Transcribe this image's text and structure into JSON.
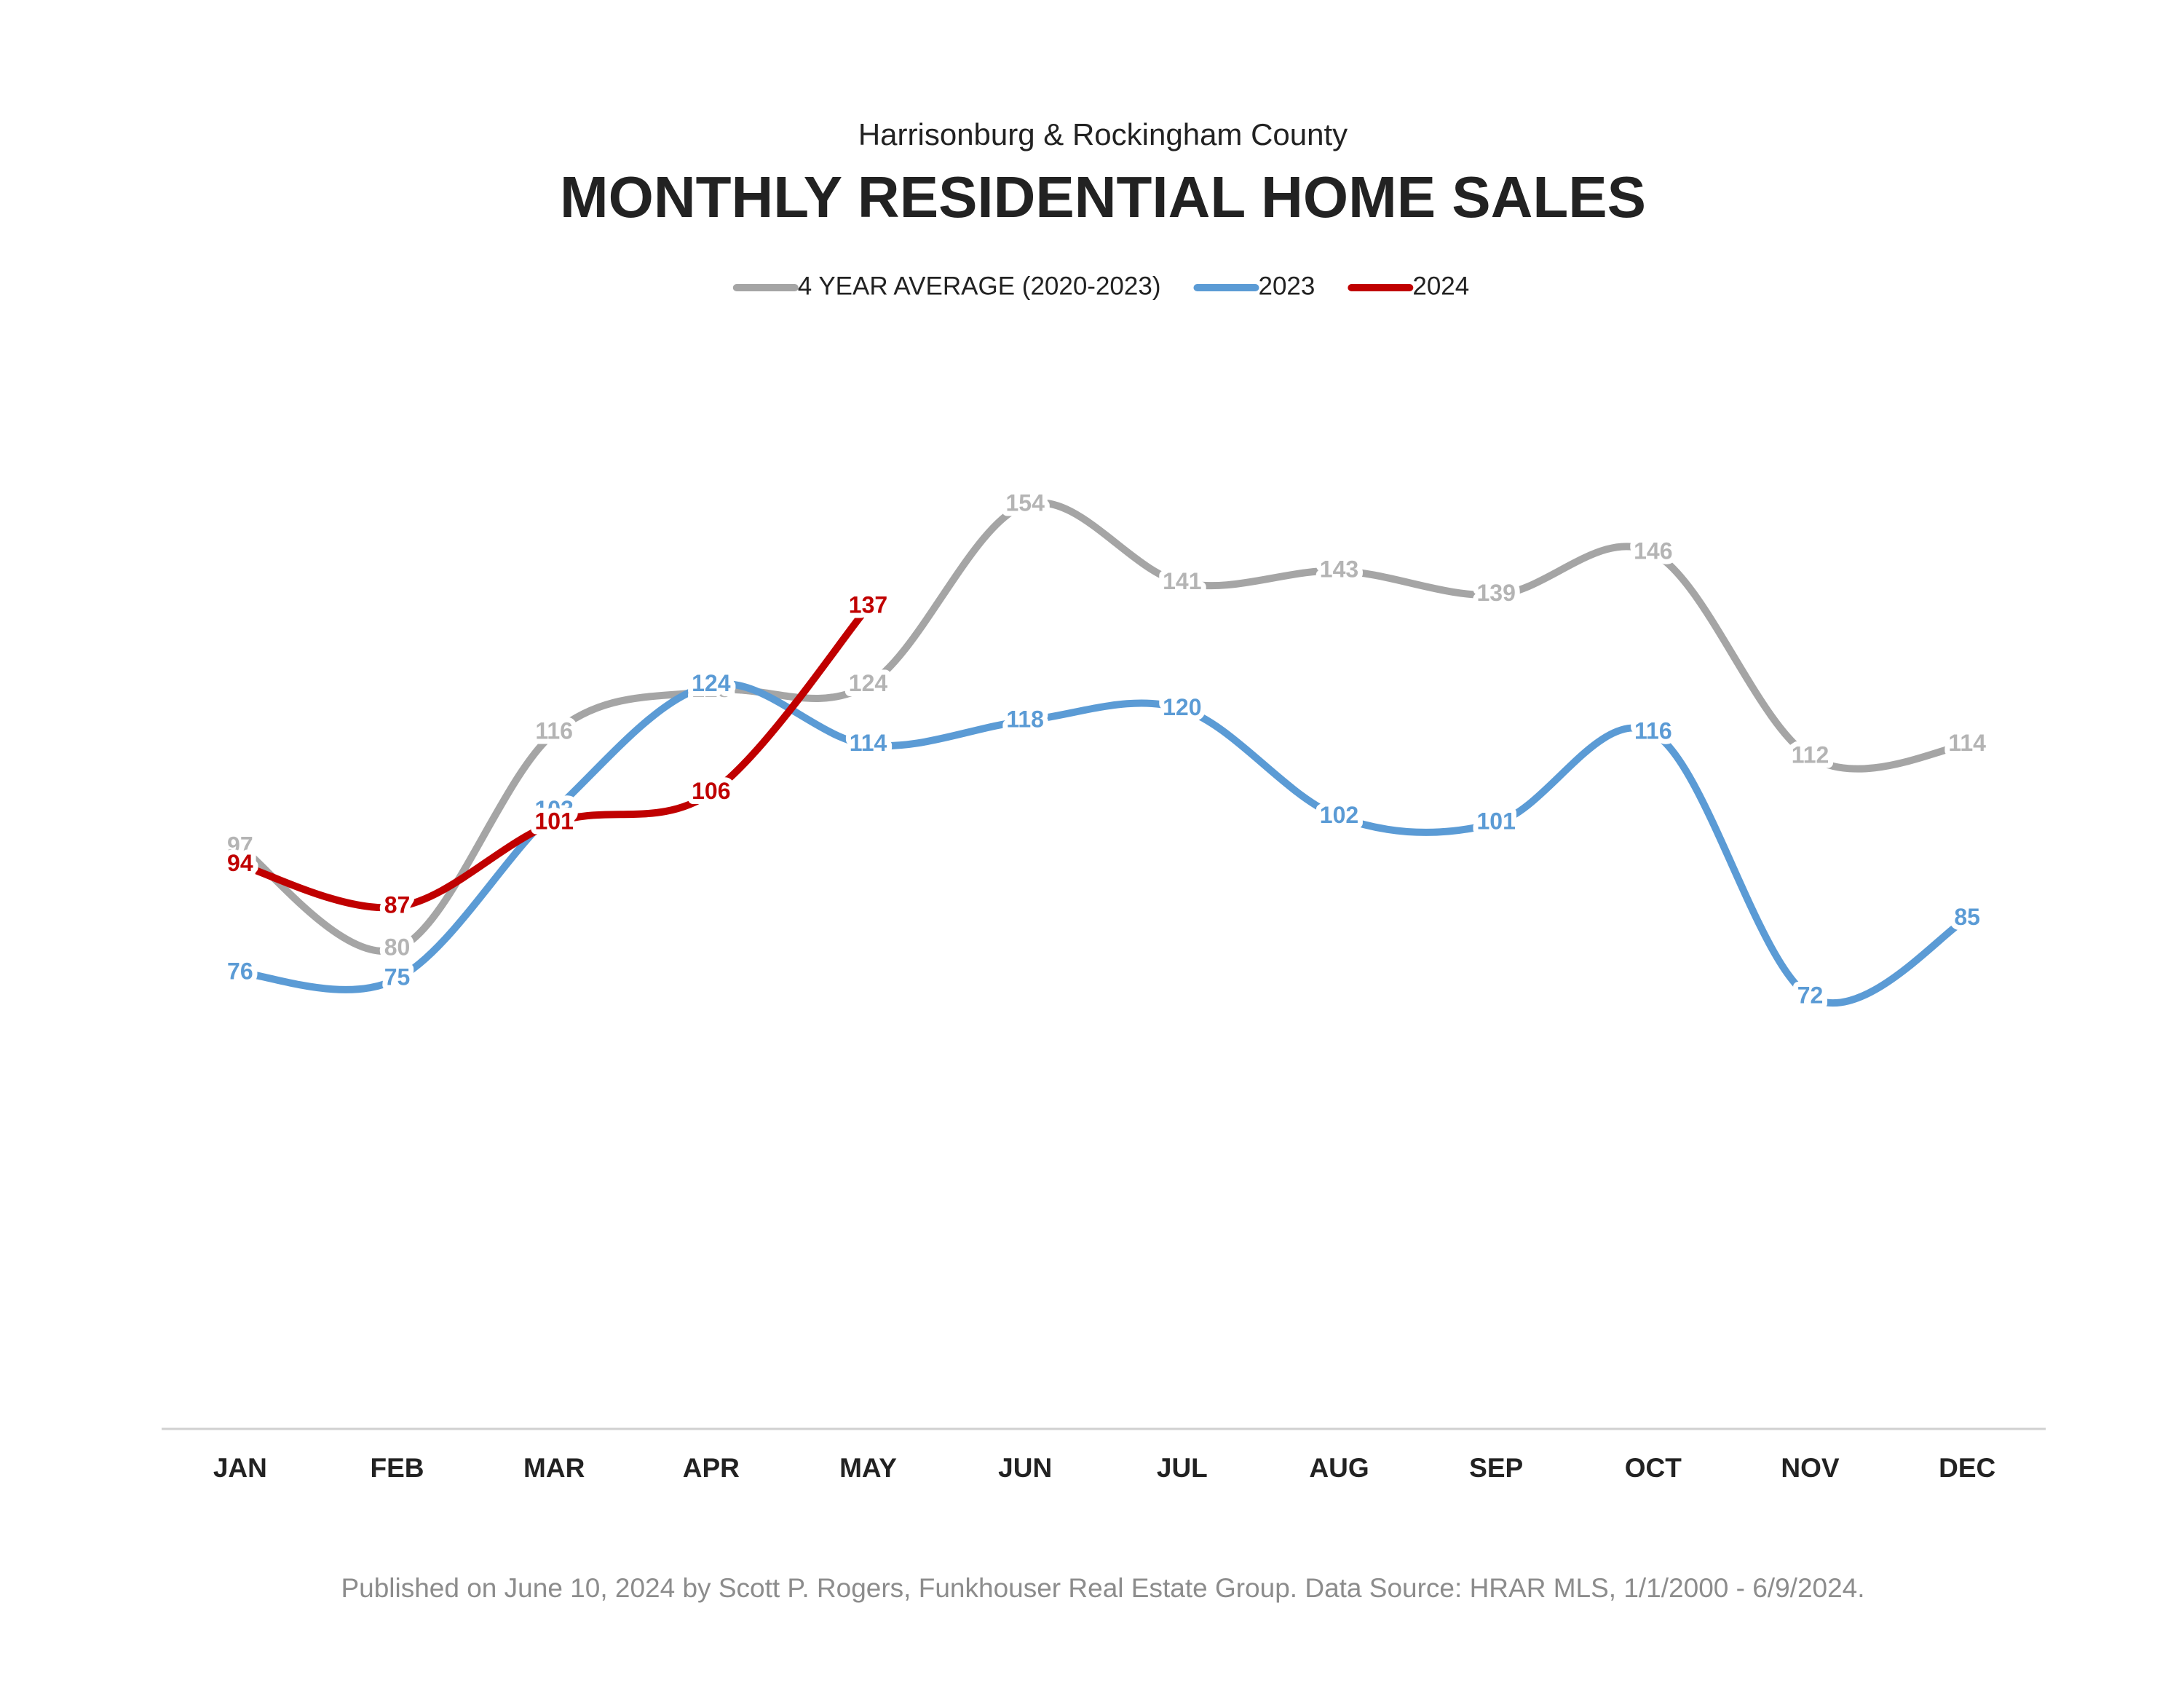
{
  "chart_data": {
    "type": "line",
    "subtitle": "Harrisonburg & Rockingham County",
    "title": "MONTHLY RESIDENTIAL HOME SALES",
    "categories": [
      "JAN",
      "FEB",
      "MAR",
      "APR",
      "MAY",
      "JUN",
      "JUL",
      "AUG",
      "SEP",
      "OCT",
      "NOV",
      "DEC"
    ],
    "series": [
      {
        "name": "4 YEAR AVERAGE (2020-2023)",
        "color": "#a5a5a5",
        "label_color": "#b4b4b4",
        "values": [
          97,
          80,
          116,
          123,
          124,
          154,
          141,
          143,
          139,
          146,
          112,
          114
        ]
      },
      {
        "name": "2023",
        "color": "#5b9bd5",
        "label_color": "#5b9bd5",
        "values": [
          76,
          75,
          103,
          124,
          114,
          118,
          120,
          102,
          101,
          116,
          72,
          85
        ]
      },
      {
        "name": "2024",
        "color": "#c00000",
        "label_color": "#c00000",
        "values": [
          94,
          87,
          101,
          106,
          137,
          null,
          null,
          null,
          null,
          null,
          null,
          null
        ]
      }
    ],
    "ylim": [
      0,
      180
    ],
    "smooth": true,
    "legend": "top",
    "footnote": "Published on June 10, 2024 by Scott P. Rogers, Funkhouser Real Estate Group. Data Source: HRAR MLS, 1/1/2000 - 6/9/2024."
  }
}
